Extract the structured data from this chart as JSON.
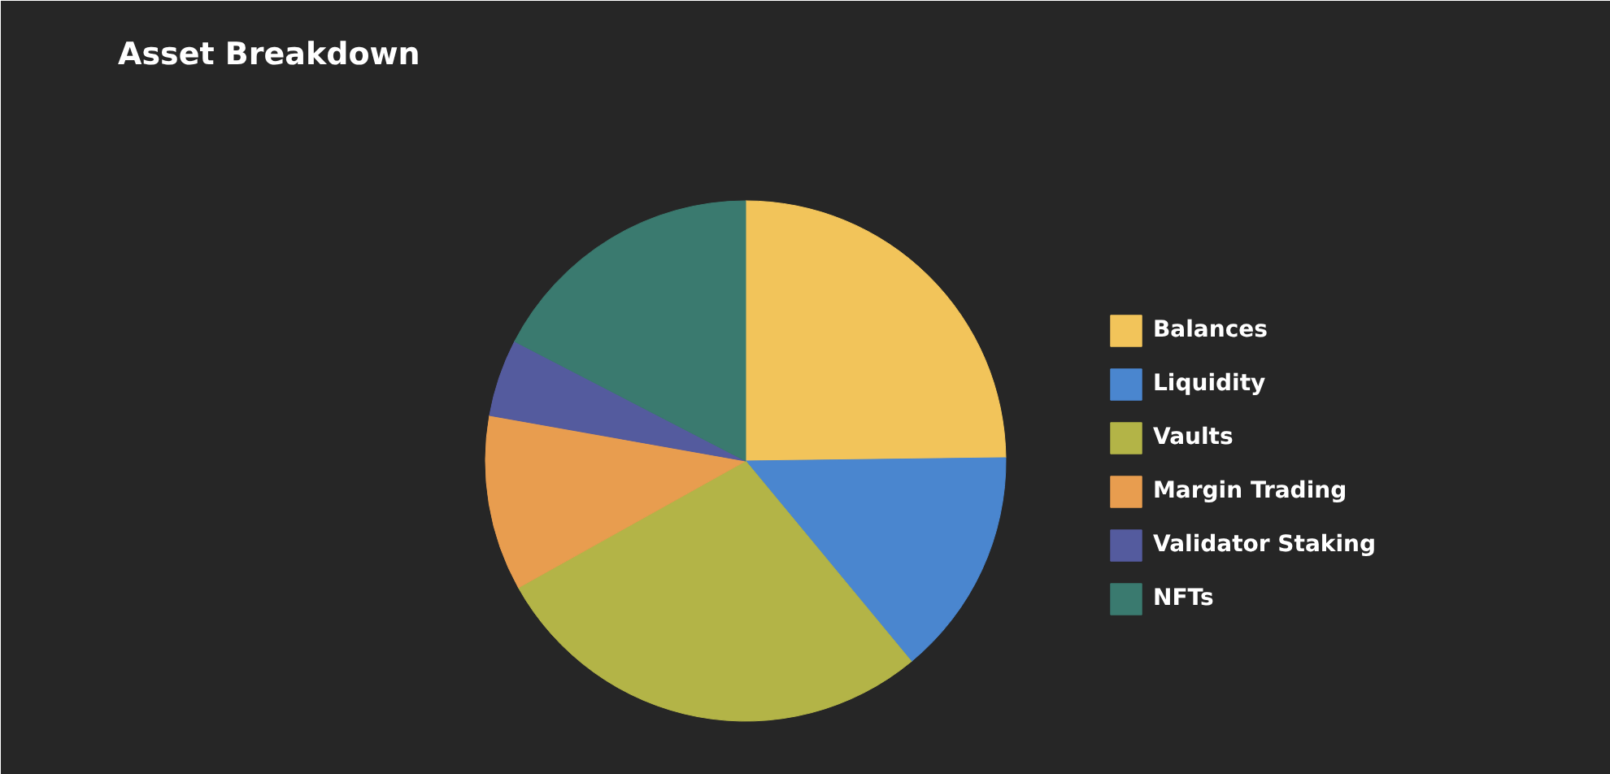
{
  "chart_data": {
    "type": "pie",
    "title": "Asset Breakdown",
    "categories": [
      "Balances",
      "Liquidity",
      "Vaults",
      "Margin Trading",
      "Validator Staking",
      "NFTs"
    ],
    "values": [
      24.8,
      14.2,
      27.9,
      10.9,
      4.8,
      17.4
    ],
    "colors": [
      "#f2c45a",
      "#4a86cf",
      "#b3b447",
      "#e89d4f",
      "#545b9e",
      "#3a7a6f"
    ],
    "legend": "right"
  }
}
